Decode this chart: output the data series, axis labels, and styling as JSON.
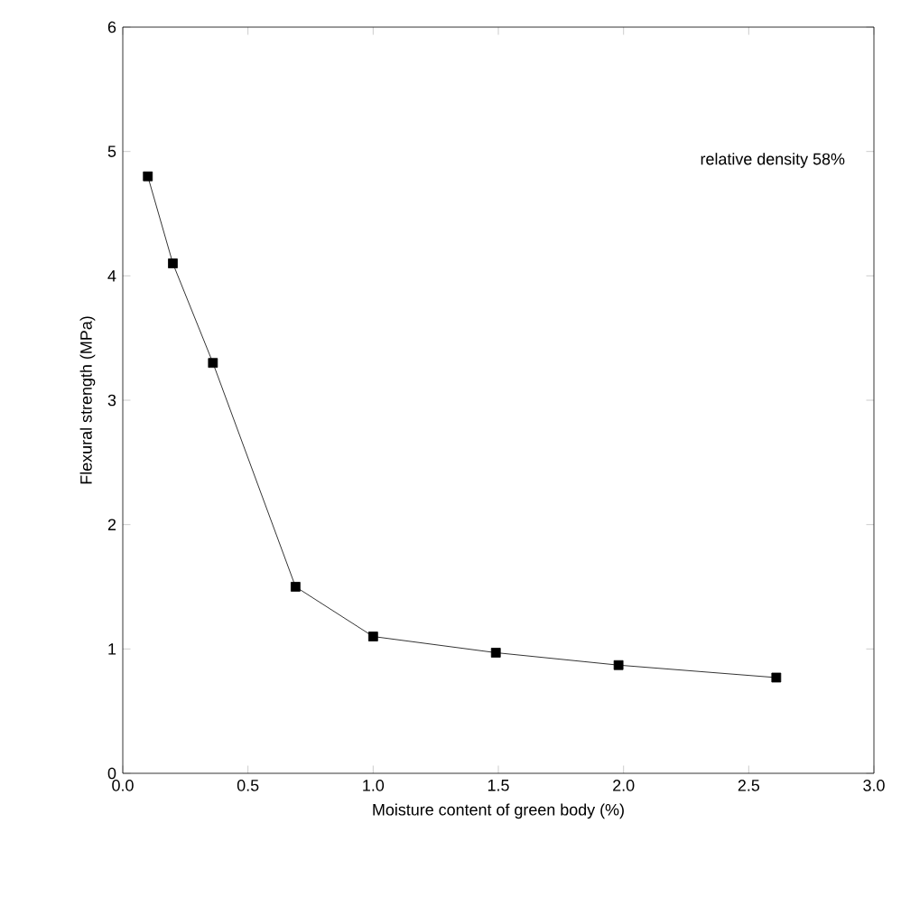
{
  "chart_data": {
    "type": "line",
    "xlabel": "Moisture content of green body (%)",
    "ylabel": "Flexural strength (MPa)",
    "annotations": [
      "relative density 58%"
    ],
    "x": [
      0.1,
      0.2,
      0.36,
      0.69,
      1.0,
      1.49,
      1.98,
      2.61
    ],
    "series": [
      {
        "color": "#000000",
        "values": [
          4.8,
          4.1,
          3.3,
          1.5,
          1.1,
          0.97,
          0.87,
          0.77
        ]
      }
    ],
    "xlim": [
      0,
      3
    ],
    "xticks": [
      {
        "value": 0,
        "label": "0.0"
      },
      0.5,
      {
        "value": 1,
        "label": "1.0"
      },
      1.5,
      {
        "value": 2,
        "label": "2.0"
      },
      2.5,
      {
        "value": 3,
        "label": "3.0"
      }
    ],
    "ylim": [
      0,
      6
    ],
    "yticks": [
      0,
      1,
      2,
      3,
      4,
      5,
      6
    ],
    "grid": false,
    "marker": "square",
    "line_style": "solid"
  }
}
